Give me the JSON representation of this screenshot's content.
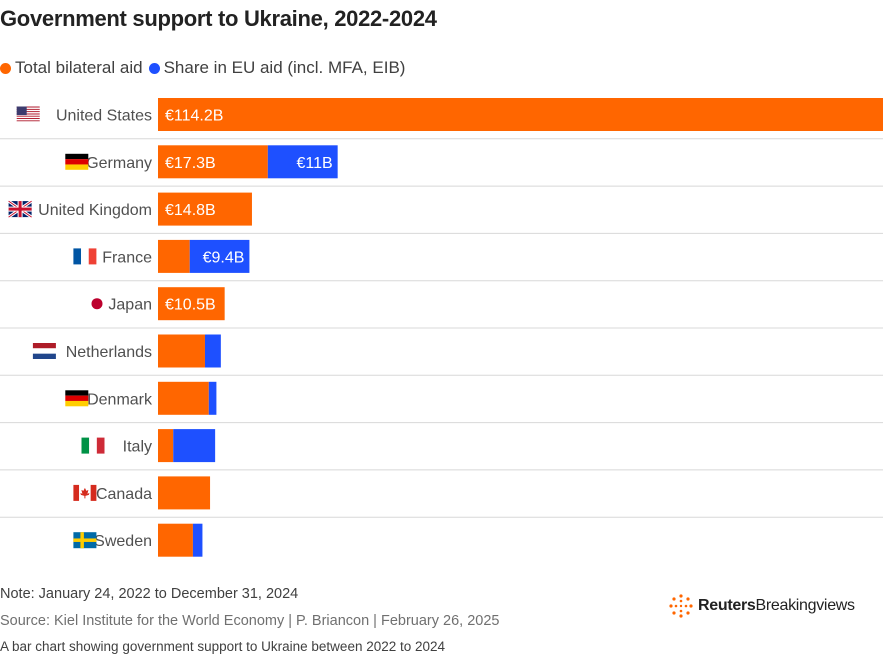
{
  "title": "Government support to Ukraine, 2022-2024",
  "legend": [
    {
      "label": "Total bilateral aid",
      "color": "#ff6600"
    },
    {
      "label": "Share in EU aid (incl. MFA, EIB)",
      "color": "#1e50ff"
    }
  ],
  "note": "Note: January 24, 2022 to December 31, 2024",
  "source": "Source: Kiel Institute for the World Economy | P. Briancon | February 26, 2025",
  "caption": "A bar chart showing government support to Ukraine between 2022 to 2024",
  "logo": {
    "brand": "Reuters",
    "sub": "Breakingviews"
  },
  "chart_data": {
    "type": "bar",
    "orientation": "horizontal",
    "stacked": true,
    "unit": "€ billion",
    "categories": [
      "United States",
      "Germany",
      "United Kingdom",
      "France",
      "Japan",
      "Netherlands",
      "Denmark",
      "Italy",
      "Canada",
      "Sweden"
    ],
    "flags": [
      "us-flag-icon",
      "de-flag-icon",
      "gb-flag-icon",
      "fr-flag-icon",
      "jp-flag-icon",
      "nl-flag-icon",
      "dk-flag-icon",
      "it-flag-icon",
      "ca-flag-icon",
      "se-flag-icon"
    ],
    "series": [
      {
        "name": "Total bilateral aid",
        "color": "#ff6600",
        "values": [
          114.2,
          17.3,
          14.8,
          5.0,
          10.5,
          7.4,
          8.0,
          2.4,
          8.2,
          5.5
        ],
        "labels": [
          "€114.2B",
          "€17.3B",
          "€14.8B",
          "",
          "€10.5B",
          "",
          "",
          "",
          "",
          ""
        ]
      },
      {
        "name": "Share in EU aid (incl. MFA, EIB)",
        "color": "#1e50ff",
        "values": [
          0,
          11.0,
          0,
          9.4,
          0,
          2.5,
          1.2,
          6.6,
          0,
          1.5
        ],
        "labels": [
          "",
          "€11B",
          "",
          "€9.4B",
          "",
          "",
          "",
          "",
          "",
          ""
        ]
      }
    ],
    "xlim": [
      0,
      114.2
    ],
    "grid": false
  }
}
